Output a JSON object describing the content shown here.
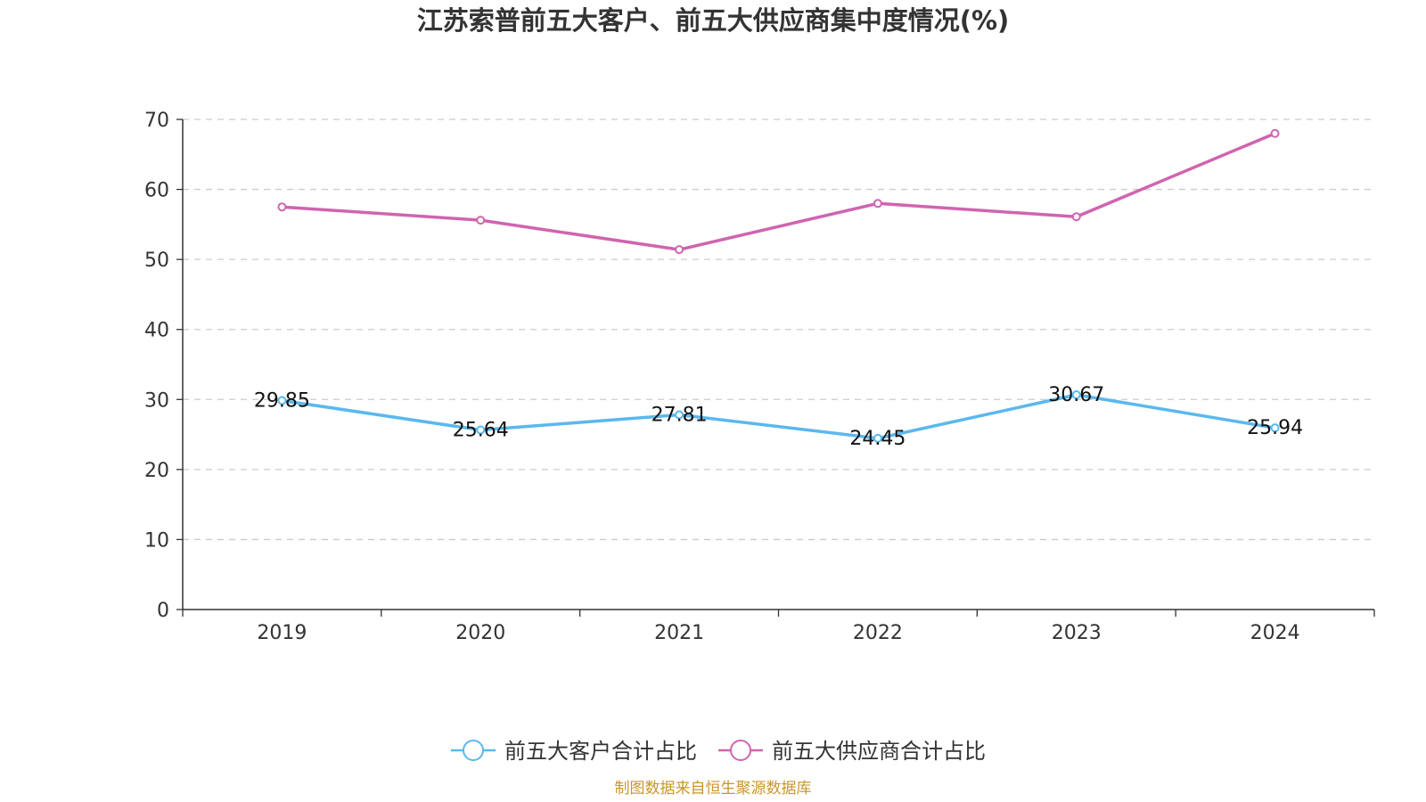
{
  "colors": {
    "customer": "#5ab8ee",
    "supplier": "#d064b0",
    "axis": "#333333",
    "grid": "#cccccc",
    "source": "#c8962a"
  },
  "chart_data": {
    "type": "line",
    "title": "江苏索普前五大客户、前五大供应商集中度情况(%)",
    "xlabel": "",
    "ylabel": "",
    "x": [
      "2019",
      "2020",
      "2021",
      "2022",
      "2023",
      "2024"
    ],
    "ylim": [
      0,
      70
    ],
    "yticks": [
      0,
      10,
      20,
      30,
      40,
      50,
      60,
      70
    ],
    "grid": true,
    "legend_position": "bottom-center",
    "series": [
      {
        "name": "前五大客户合计占比",
        "values": [
          29.85,
          25.64,
          27.81,
          24.45,
          30.67,
          25.94
        ],
        "labels": [
          "29.85",
          "25.64",
          "27.81",
          "24.45",
          "30.67",
          "25.94"
        ],
        "show_labels": true
      },
      {
        "name": "前五大供应商合计占比",
        "values": [
          57.5,
          55.6,
          51.4,
          58.0,
          56.1,
          68.0
        ],
        "show_labels": false
      }
    ]
  },
  "source_note": "制图数据来自恒生聚源数据库"
}
